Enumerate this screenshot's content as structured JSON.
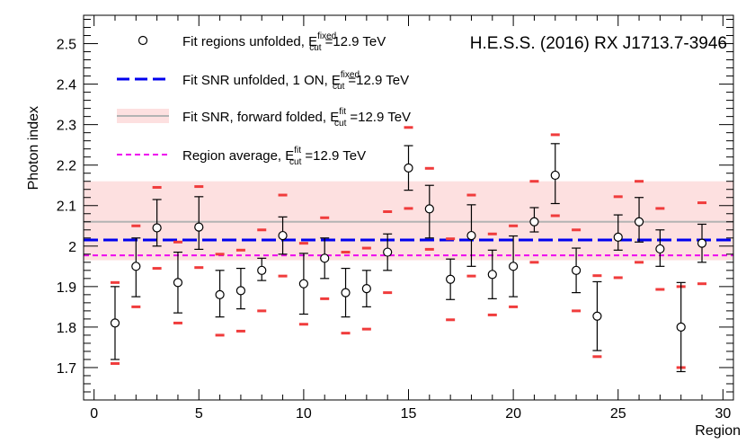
{
  "chart_data": {
    "type": "scatter",
    "title": "H.E.S.S. (2016) RX J1713.7-3946",
    "xlabel": "Region",
    "ylabel": "Photon index",
    "xlim": [
      -0.5,
      30.5
    ],
    "ylim": [
      1.62,
      2.57
    ],
    "x_ticks": [
      0,
      5,
      10,
      15,
      20,
      25,
      30
    ],
    "y_ticks": [
      1.7,
      1.8,
      1.9,
      2.0,
      2.1,
      2.2,
      2.3,
      2.4,
      2.5
    ],
    "y_tick_labels": [
      "1.7",
      "1.8",
      "1.9",
      "2",
      "2.1",
      "2.2",
      "2.3",
      "2.4",
      "2.5"
    ],
    "grid": false,
    "legend": [
      {
        "main": "Fit regions unfolded, E",
        "sup": "fixed",
        "sub": "cut",
        "tail": "=12.9 TeV"
      },
      {
        "main": "Fit SNR unfolded, 1 ON, E",
        "sup": "fixed",
        "sub": "cut",
        "tail": "=12.9 TeV"
      },
      {
        "main": "Fit SNR, forward folded, E",
        "sup": "fit",
        "sub": "cut",
        "tail": "=12.9 TeV"
      },
      {
        "main": "Region average, E",
        "sup": "fit",
        "sub": "cut",
        "tail": "=12.9 TeV"
      }
    ],
    "series": [
      {
        "name": "Fit regions unfolded",
        "x": [
          1,
          2,
          3,
          4,
          5,
          6,
          7,
          8,
          9,
          10,
          11,
          12,
          13,
          14,
          15,
          16,
          17,
          18,
          19,
          20,
          21,
          22,
          23,
          24,
          25,
          26,
          27,
          28,
          29
        ],
        "values": [
          1.81,
          1.95,
          2.045,
          1.91,
          2.047,
          1.88,
          1.89,
          1.94,
          2.026,
          1.907,
          1.97,
          1.885,
          1.895,
          1.985,
          2.193,
          2.092,
          1.918,
          2.026,
          1.93,
          1.95,
          2.06,
          2.175,
          1.94,
          1.827,
          2.022,
          2.06,
          1.993,
          1.8,
          2.007
        ],
        "err_low": [
          0.09,
          0.075,
          0.045,
          0.075,
          0.055,
          0.055,
          0.045,
          0.025,
          0.046,
          0.075,
          0.05,
          0.06,
          0.045,
          0.045,
          0.055,
          0.072,
          0.05,
          0.076,
          0.06,
          0.075,
          0.025,
          0.07,
          0.055,
          0.085,
          0.032,
          0.05,
          0.043,
          0.11,
          0.047
        ],
        "err_high": [
          0.09,
          0.07,
          0.07,
          0.075,
          0.075,
          0.06,
          0.055,
          0.03,
          0.046,
          0.075,
          0.05,
          0.06,
          0.045,
          0.045,
          0.055,
          0.058,
          0.05,
          0.076,
          0.06,
          0.075,
          0.035,
          0.078,
          0.055,
          0.085,
          0.055,
          0.06,
          0.047,
          0.11,
          0.047
        ],
        "sys_low": [
          1.71,
          1.85,
          1.945,
          1.81,
          1.947,
          1.78,
          1.79,
          1.84,
          1.926,
          1.807,
          1.87,
          1.785,
          1.795,
          1.885,
          2.093,
          1.992,
          1.818,
          1.926,
          1.83,
          1.85,
          1.96,
          2.075,
          1.84,
          1.727,
          1.922,
          1.96,
          1.893,
          1.7,
          1.907
        ],
        "sys_high": [
          1.91,
          2.05,
          2.145,
          2.01,
          2.147,
          1.98,
          1.99,
          2.04,
          2.126,
          2.007,
          2.07,
          1.985,
          1.995,
          2.085,
          2.293,
          2.192,
          2.018,
          2.126,
          2.03,
          2.05,
          2.16,
          2.275,
          2.04,
          1.927,
          2.122,
          2.16,
          2.093,
          1.9,
          2.107
        ]
      },
      {
        "name": "Fit SNR unfolded, 1 ON",
        "constant": 2.015
      },
      {
        "name": "Fit SNR, forward folded",
        "constant": 2.06,
        "band": [
          1.965,
          2.16
        ]
      },
      {
        "name": "Region average",
        "constant": 1.977
      }
    ],
    "colors": {
      "points": "#000000",
      "sys_bars": "#f03c3c",
      "snr_unfolded": "#0000ee",
      "forward_folded_line": "#b3b3b3",
      "forward_folded_band": "#fde0e0",
      "region_average": "#ee00ee"
    }
  }
}
